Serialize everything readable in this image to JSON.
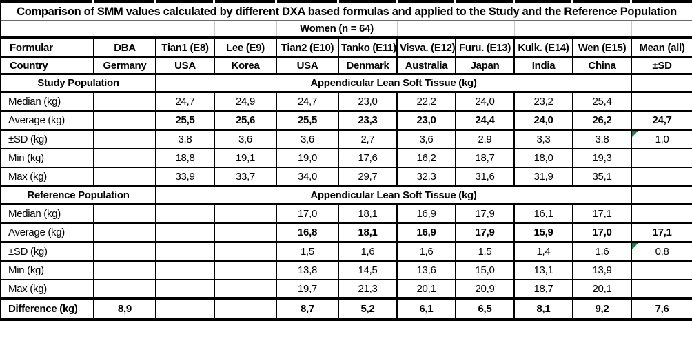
{
  "colors": {
    "border": "#000000",
    "light_grid": "#c9c9c9",
    "flag_green": "#1f7a43",
    "text": "#000000",
    "background": "#ffffff"
  },
  "table": {
    "title": "Comparison of SMM values calculated by different DXA based formulas and applied to the Study and the Reference Population",
    "subtitle": "Women (n = 64)",
    "header": {
      "label": "Formular",
      "dba": "DBA",
      "formulas": [
        "Tian1 (E8)",
        "Lee (E9)",
        "Tian2 (E10)",
        "Tanko (E11)",
        "Visva. (E12)",
        "Furu. (E13)",
        "Kulk. (E14)",
        "Wen (E15)"
      ],
      "mean": "Mean (all)"
    },
    "country": {
      "label": "Country",
      "dba": "Germany",
      "values": [
        "USA",
        "Korea",
        "USA",
        "Denmark",
        "Australia",
        "Japan",
        "India",
        "China"
      ],
      "mean": "±SD"
    },
    "sections": [
      {
        "name": "Study Population",
        "measure": "Appendicular Lean Soft Tissue (kg)",
        "rows": [
          {
            "label": "Median (kg)",
            "dba": "",
            "values": [
              "24,7",
              "24,9",
              "24,7",
              "23,0",
              "22,2",
              "24,0",
              "23,2",
              "25,4"
            ],
            "mean": "",
            "bold": false,
            "mean_flag": false
          },
          {
            "label": "Average (kg)",
            "dba": "",
            "values": [
              "25,5",
              "25,6",
              "25,5",
              "23,3",
              "23,0",
              "24,4",
              "24,0",
              "26,2"
            ],
            "mean": "24,7",
            "bold": true,
            "mean_flag": false
          },
          {
            "label": "±SD (kg)",
            "dba": "",
            "values": [
              "3,8",
              "3,6",
              "3,6",
              "2,7",
              "3,6",
              "2,9",
              "3,3",
              "3,8"
            ],
            "mean": "1,0",
            "bold": false,
            "mean_flag": true
          },
          {
            "label": "Min (kg)",
            "dba": "",
            "values": [
              "18,8",
              "19,1",
              "19,0",
              "17,6",
              "16,2",
              "18,7",
              "18,0",
              "19,3"
            ],
            "mean": "",
            "bold": false,
            "mean_flag": false
          },
          {
            "label": "Max (kg)",
            "dba": "",
            "values": [
              "33,9",
              "33,7",
              "34,0",
              "29,7",
              "32,3",
              "31,6",
              "31,9",
              "35,1"
            ],
            "mean": "",
            "bold": false,
            "mean_flag": false
          }
        ]
      },
      {
        "name": "Reference Population",
        "measure": "Appendicular Lean Soft Tissue (kg)",
        "rows": [
          {
            "label": "Median (kg)",
            "dba": "",
            "values": [
              "",
              "",
              "17,0",
              "18,1",
              "16,9",
              "17,9",
              "16,1",
              "17,1"
            ],
            "mean": "",
            "bold": false,
            "mean_flag": false
          },
          {
            "label": "Average (kg)",
            "dba": "",
            "values": [
              "",
              "",
              "16,8",
              "18,1",
              "16,9",
              "17,9",
              "15,9",
              "17,0"
            ],
            "mean": "17,1",
            "bold": true,
            "mean_flag": false
          },
          {
            "label": "±SD (kg)",
            "dba": "",
            "values": [
              "",
              "",
              "1,5",
              "1,6",
              "1,6",
              "1,5",
              "1,4",
              "1,6"
            ],
            "mean": "0,8",
            "bold": false,
            "mean_flag": true
          },
          {
            "label": "Min (kg)",
            "dba": "",
            "values": [
              "",
              "",
              "13,8",
              "14,5",
              "13,6",
              "15,0",
              "13,1",
              "13,9"
            ],
            "mean": "",
            "bold": false,
            "mean_flag": false
          },
          {
            "label": "Max (kg)",
            "dba": "",
            "values": [
              "",
              "",
              "19,7",
              "21,3",
              "20,1",
              "20,9",
              "18,7",
              "20,1"
            ],
            "mean": "",
            "bold": false,
            "mean_flag": false
          }
        ]
      }
    ],
    "difference": {
      "label": "Difference (kg)",
      "dba": "8,9",
      "values": [
        "",
        "",
        "8,7",
        "5,2",
        "6,1",
        "6,5",
        "8,1",
        "9,2"
      ],
      "mean": "7,6"
    }
  }
}
